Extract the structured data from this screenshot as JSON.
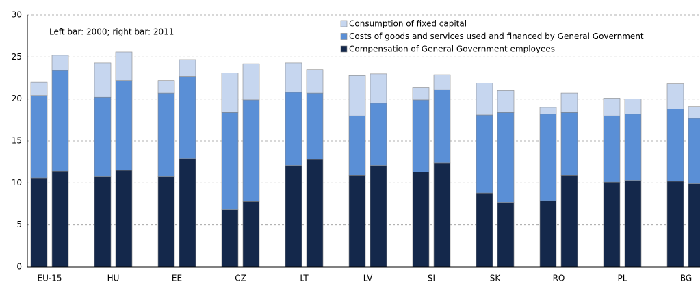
{
  "chart_data": {
    "type": "stacked-bar-pairs",
    "annotation": "Left bar: 2000; right bar: 2011",
    "categories": [
      "EU-15",
      "HU",
      "EE",
      "CZ",
      "LT",
      "LV",
      "SI",
      "SK",
      "RO",
      "PL",
      "BG"
    ],
    "series": [
      {
        "name": "Compensation of General Government employees",
        "color": "#14284b",
        "values": [
          [
            10.6,
            11.4
          ],
          [
            10.8,
            11.5
          ],
          [
            10.8,
            12.9
          ],
          [
            6.8,
            7.8
          ],
          [
            12.1,
            12.8
          ],
          [
            10.9,
            12.1
          ],
          [
            11.3,
            12.4
          ],
          [
            8.8,
            7.7
          ],
          [
            7.9,
            10.9
          ],
          [
            10.1,
            10.3
          ],
          [
            10.2,
            9.9
          ]
        ]
      },
      {
        "name": "Costs of goods and services used and financed by General Government",
        "color": "#5a8fd6",
        "values": [
          [
            9.8,
            12.0
          ],
          [
            9.4,
            10.7
          ],
          [
            9.9,
            9.8
          ],
          [
            11.6,
            12.1
          ],
          [
            8.7,
            7.9
          ],
          [
            7.1,
            7.4
          ],
          [
            8.6,
            8.7
          ],
          [
            9.3,
            10.7
          ],
          [
            10.3,
            7.5
          ],
          [
            7.9,
            7.9
          ],
          [
            8.6,
            7.8
          ]
        ]
      },
      {
        "name": "Consumption of fixed capital",
        "color": "#c6d6ef",
        "values": [
          [
            1.6,
            1.8
          ],
          [
            4.1,
            3.4
          ],
          [
            1.5,
            2.0
          ],
          [
            4.7,
            4.3
          ],
          [
            3.5,
            2.8
          ],
          [
            4.8,
            3.5
          ],
          [
            1.5,
            1.8
          ],
          [
            3.8,
            2.6
          ],
          [
            0.8,
            2.3
          ],
          [
            2.1,
            1.8
          ],
          [
            3.0,
            1.4
          ]
        ]
      }
    ],
    "ylim": [
      0,
      30
    ],
    "yticks": [
      0,
      5,
      10,
      15,
      20,
      25,
      30
    ],
    "grid": true
  }
}
